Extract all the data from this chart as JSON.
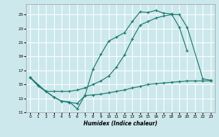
{
  "xlabel": "Humidex (Indice chaleur)",
  "bg_color": "#cce8ec",
  "grid_color": "#ffffff",
  "line_color": "#1a7a6e",
  "xlim": [
    -0.5,
    23.5
  ],
  "ylim": [
    11,
    26.5
  ],
  "xticks": [
    0,
    1,
    2,
    3,
    4,
    5,
    6,
    7,
    8,
    9,
    10,
    11,
    12,
    13,
    14,
    15,
    16,
    17,
    18,
    19,
    20,
    21,
    22,
    23
  ],
  "yticks": [
    11,
    13,
    15,
    17,
    19,
    21,
    23,
    25
  ],
  "line1_x": [
    0,
    1,
    2,
    3,
    4,
    5,
    6,
    7,
    8,
    9,
    10,
    11,
    12,
    13,
    14,
    15,
    16,
    17,
    18,
    19,
    20,
    21,
    22,
    23
  ],
  "line1_y": [
    16.0,
    14.8,
    14.0,
    13.2,
    12.6,
    12.5,
    11.5,
    13.5,
    17.2,
    19.3,
    21.2,
    21.8,
    22.4,
    24.0,
    25.4,
    25.3,
    25.6,
    25.2,
    25.1,
    23.2,
    19.8,
    null,
    null,
    null
  ],
  "line2_x": [
    0,
    1,
    2,
    3,
    4,
    5,
    6,
    7,
    8,
    9,
    10,
    11,
    12,
    13,
    14,
    15,
    16,
    17,
    18,
    19,
    20,
    22,
    23
  ],
  "line2_y": [
    16.0,
    14.8,
    14.0,
    14.0,
    14.0,
    14.0,
    14.2,
    14.5,
    15.0,
    15.5,
    16.2,
    17.5,
    19.2,
    21.5,
    23.5,
    24.0,
    24.5,
    24.8,
    25.0,
    25.0,
    23.2,
    15.8,
    15.6
  ],
  "line3_x": [
    0,
    2,
    3,
    4,
    5,
    6,
    7,
    8,
    9,
    10,
    11,
    12,
    13,
    14,
    15,
    16,
    17,
    18,
    19,
    20,
    21,
    22,
    23
  ],
  "line3_y": [
    16.0,
    14.0,
    13.2,
    12.6,
    12.4,
    12.3,
    13.4,
    13.5,
    13.6,
    13.8,
    14.0,
    14.2,
    14.5,
    14.7,
    15.0,
    15.1,
    15.2,
    15.3,
    15.4,
    15.5,
    15.5,
    15.5,
    15.5
  ]
}
